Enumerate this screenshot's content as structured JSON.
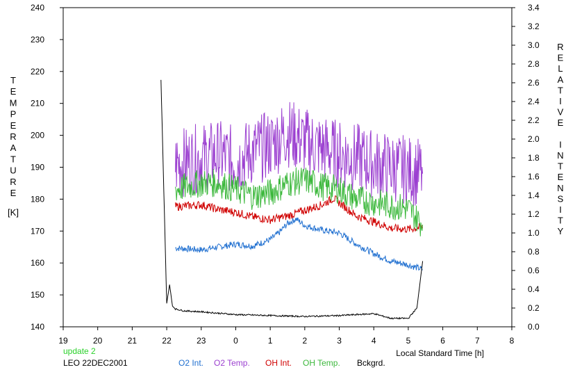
{
  "chart_data": {
    "type": "line",
    "title": "",
    "xlabel": "Local Standard Time [h]",
    "ylabel_left": "TEMPERATURE",
    "ylabel_left_unit": "[K]",
    "ylabel_right": "RELATIVE INTENSITY",
    "x_ticks": [
      "19",
      "20",
      "21",
      "22",
      "23",
      "0",
      "1",
      "2",
      "3",
      "4",
      "5",
      "6",
      "7",
      "8"
    ],
    "x_range_hours_after_19": [
      0,
      13
    ],
    "ylim_left": [
      140,
      240
    ],
    "yticks_left": [
      140,
      150,
      160,
      170,
      180,
      190,
      200,
      210,
      220,
      230,
      240
    ],
    "ylim_right": [
      0.0,
      3.4
    ],
    "yticks_right": [
      "0.0",
      "0.2",
      "0.4",
      "0.6",
      "0.8",
      "1.0",
      "1.2",
      "1.4",
      "1.6",
      "1.8",
      "2.0",
      "2.2",
      "2.4",
      "2.6",
      "2.8",
      "3.0",
      "3.2",
      "3.4"
    ],
    "update_text": "update 2",
    "station_text": "LEO 22DEC2001",
    "series": [
      {
        "name": "O2 Int.",
        "axis": "right",
        "color": "#1f6fd0",
        "x": [
          "22:15",
          "23:00",
          "23:30",
          "0:00",
          "0:30",
          "1:00",
          "1:15",
          "1:30",
          "1:45",
          "2:00",
          "2:30",
          "3:00",
          "3:30",
          "4:00",
          "4:30",
          "5:00",
          "5:25"
        ],
        "values": [
          0.84,
          0.82,
          0.85,
          0.88,
          0.86,
          0.93,
          1.0,
          1.1,
          1.15,
          1.08,
          1.03,
          1.0,
          0.88,
          0.78,
          0.7,
          0.66,
          0.61
        ]
      },
      {
        "name": "O2 Temp.",
        "axis": "left",
        "color": "#9b3fd0",
        "x": [
          "22:15",
          "23:00",
          "23:30",
          "0:00",
          "0:30",
          "1:00",
          "1:30",
          "2:00",
          "2:30",
          "3:00",
          "3:30",
          "4:00",
          "4:30",
          "5:00",
          "5:25"
        ],
        "values": [
          191,
          193,
          194,
          192,
          195,
          197,
          201,
          198,
          196,
          194,
          193,
          191,
          190,
          189,
          188
        ]
      },
      {
        "name": "OH Int.",
        "axis": "right",
        "color": "#d00000",
        "x": [
          "22:15",
          "23:00",
          "23:30",
          "0:00",
          "0:30",
          "1:00",
          "1:30",
          "2:00",
          "2:30",
          "2:50",
          "3:30",
          "4:00",
          "4:30",
          "5:00",
          "5:25"
        ],
        "values": [
          1.28,
          1.3,
          1.25,
          1.22,
          1.17,
          1.14,
          1.18,
          1.24,
          1.3,
          1.37,
          1.18,
          1.12,
          1.05,
          1.04,
          1.06
        ]
      },
      {
        "name": "OH Temp.",
        "axis": "left",
        "color": "#3cb83c",
        "x": [
          "22:15",
          "23:00",
          "23:30",
          "0:00",
          "0:30",
          "1:00",
          "1:30",
          "2:00",
          "2:30",
          "3:00",
          "3:30",
          "4:00",
          "4:30",
          "5:00",
          "5:25"
        ],
        "values": [
          183,
          185,
          185,
          183,
          181,
          182,
          185,
          186,
          184,
          183,
          180,
          179,
          178,
          177,
          172
        ]
      },
      {
        "name": "Bckgrd.",
        "axis": "right",
        "color": "#000000",
        "x": [
          "21:50",
          "22:00",
          "22:05",
          "22:10",
          "22:15",
          "22:30",
          "23:00",
          "0:00",
          "1:00",
          "2:00",
          "3:00",
          "4:00",
          "4:30",
          "5:00",
          "5:15",
          "5:25"
        ],
        "values": [
          2.63,
          0.25,
          0.45,
          0.22,
          0.19,
          0.17,
          0.16,
          0.13,
          0.12,
          0.11,
          0.12,
          0.14,
          0.09,
          0.09,
          0.2,
          0.7
        ]
      }
    ]
  }
}
